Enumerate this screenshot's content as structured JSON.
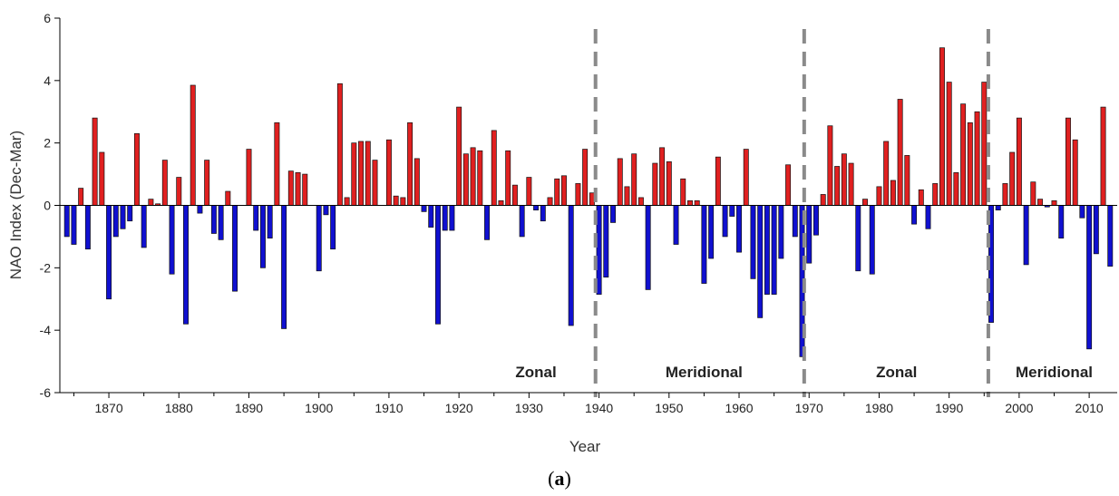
{
  "chart_data": {
    "type": "bar",
    "title": "",
    "xlabel": "Year",
    "ylabel": "NAO Index (Dec-Mar)",
    "ylim": [
      -6,
      6
    ],
    "yticks": [
      -6,
      -4,
      -2,
      0,
      2,
      4,
      6
    ],
    "xlim": [
      1863,
      2014
    ],
    "xticks": [
      1870,
      1880,
      1890,
      1900,
      1910,
      1920,
      1930,
      1940,
      1950,
      1960,
      1970,
      1980,
      1990,
      2000,
      2010
    ],
    "colors": {
      "positive": "#e02020",
      "negative": "#1010d0",
      "divider": "#8a8a8a"
    },
    "x": [
      1864,
      1865,
      1866,
      1867,
      1868,
      1869,
      1870,
      1871,
      1872,
      1873,
      1874,
      1875,
      1876,
      1877,
      1878,
      1879,
      1880,
      1881,
      1882,
      1883,
      1884,
      1885,
      1886,
      1887,
      1888,
      1889,
      1890,
      1891,
      1892,
      1893,
      1894,
      1895,
      1896,
      1897,
      1898,
      1899,
      1900,
      1901,
      1902,
      1903,
      1904,
      1905,
      1906,
      1907,
      1908,
      1909,
      1910,
      1911,
      1912,
      1913,
      1914,
      1915,
      1916,
      1917,
      1918,
      1919,
      1920,
      1921,
      1922,
      1923,
      1924,
      1925,
      1926,
      1927,
      1928,
      1929,
      1930,
      1931,
      1932,
      1933,
      1934,
      1935,
      1936,
      1937,
      1938,
      1939,
      1940,
      1941,
      1942,
      1943,
      1944,
      1945,
      1946,
      1947,
      1948,
      1949,
      1950,
      1951,
      1952,
      1953,
      1954,
      1955,
      1956,
      1957,
      1958,
      1959,
      1960,
      1961,
      1962,
      1963,
      1964,
      1965,
      1966,
      1967,
      1968,
      1969,
      1970,
      1971,
      1972,
      1973,
      1974,
      1975,
      1976,
      1977,
      1978,
      1979,
      1980,
      1981,
      1982,
      1983,
      1984,
      1985,
      1986,
      1987,
      1988,
      1989,
      1990,
      1991,
      1992,
      1993,
      1994,
      1995,
      1996,
      1997,
      1998,
      1999,
      2000,
      2001,
      2002,
      2003,
      2004,
      2005,
      2006,
      2007,
      2008,
      2009,
      2010,
      2011,
      2012,
      2013
    ],
    "values": [
      -1.0,
      -1.25,
      0.55,
      -1.4,
      2.8,
      1.7,
      -3.0,
      -1.0,
      -0.75,
      -0.5,
      2.3,
      -1.35,
      0.2,
      0.05,
      1.45,
      -2.2,
      0.9,
      -3.8,
      3.85,
      -0.25,
      1.45,
      -0.9,
      -1.1,
      0.45,
      -2.75,
      0.0,
      1.8,
      -0.8,
      -2.0,
      -1.05,
      2.65,
      -3.95,
      1.1,
      1.05,
      1.0,
      0.0,
      -2.1,
      -0.3,
      -1.4,
      3.9,
      0.25,
      2.0,
      2.05,
      2.05,
      1.45,
      0.0,
      2.1,
      0.3,
      0.25,
      2.65,
      1.5,
      -0.2,
      -0.7,
      -3.8,
      -0.8,
      -0.8,
      3.15,
      1.65,
      1.85,
      1.75,
      -1.1,
      2.4,
      0.15,
      1.75,
      0.65,
      -1.0,
      0.9,
      -0.15,
      -0.5,
      0.25,
      0.85,
      0.95,
      -3.85,
      0.7,
      1.8,
      0.4,
      -2.85,
      -2.3,
      -0.55,
      1.5,
      0.6,
      1.65,
      0.25,
      -2.7,
      1.35,
      1.85,
      1.4,
      -1.25,
      0.85,
      0.15,
      0.15,
      -2.5,
      -1.7,
      1.55,
      -1.0,
      -0.35,
      -1.5,
      1.8,
      -2.35,
      -3.6,
      -2.85,
      -2.85,
      -1.7,
      1.3,
      -1.0,
      -4.85,
      -1.85,
      -0.95,
      0.35,
      2.55,
      1.25,
      1.65,
      1.35,
      -2.1,
      0.2,
      -2.2,
      0.6,
      2.05,
      0.8,
      3.4,
      1.6,
      -0.6,
      0.5,
      -0.75,
      0.7,
      5.05,
      3.95,
      1.05,
      3.25,
      2.65,
      3.0,
      3.95,
      -3.75,
      -0.15,
      0.7,
      1.7,
      2.8,
      -1.9,
      0.75,
      0.2,
      -0.05,
      0.15,
      -1.05,
      2.8,
      2.1,
      -0.4,
      -4.6,
      -1.55,
      3.15,
      -1.95
    ],
    "dividers": [
      1939.5,
      1969.3,
      1995.6
    ],
    "regimes": [
      {
        "label": "Zonal",
        "x_center": 1931
      },
      {
        "label": "Meridional",
        "x_center": 1955
      },
      {
        "label": "Zonal",
        "x_center": 1982.5
      },
      {
        "label": "Meridional",
        "x_center": 2005
      }
    ]
  },
  "caption": {
    "open": "(",
    "letter": "a",
    "close": ")"
  }
}
